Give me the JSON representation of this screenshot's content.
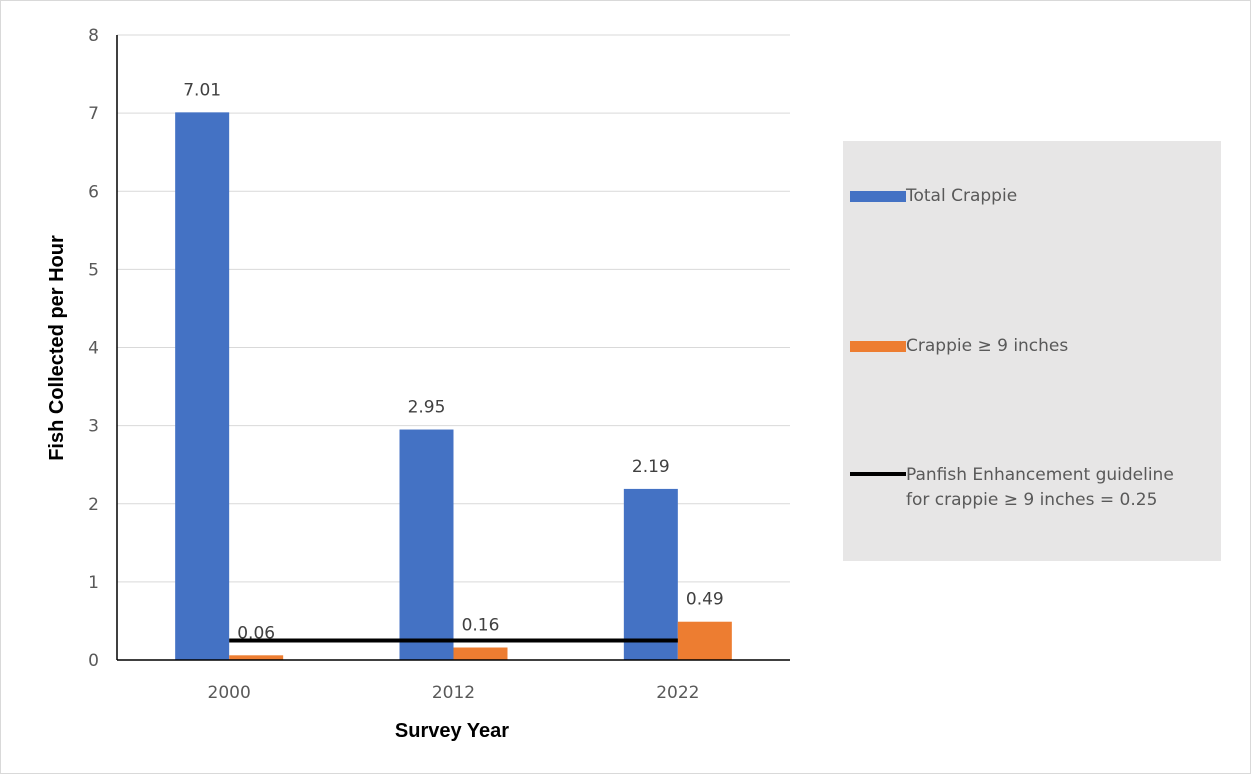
{
  "chart_data": {
    "type": "bar",
    "categories": [
      "2000",
      "2012",
      "2022"
    ],
    "series": [
      {
        "name": "Total Crappie",
        "values": [
          7.01,
          2.95,
          2.19
        ],
        "color": "#4472c4"
      },
      {
        "name": "Crappie ≥ 9 inches",
        "values": [
          0.06,
          0.16,
          0.49
        ],
        "color": "#ed7d31"
      }
    ],
    "data_labels": [
      [
        "7.01",
        "2.95",
        "2.19"
      ],
      [
        "0.06",
        "0.16",
        "0.49"
      ]
    ],
    "reference_line": {
      "name": "Panfish Enhancement guideline\nfor crappie ≥ 9 inches = 0.25",
      "value": 0.25,
      "color": "#000000"
    },
    "xlabel": "Survey Year",
    "ylabel": "Fish Collected per Hour",
    "ylim": [
      0,
      8
    ],
    "yticks": [
      "0",
      "1",
      "2",
      "3",
      "4",
      "5",
      "6",
      "7",
      "8"
    ],
    "grid": true,
    "legend_position": "right"
  }
}
